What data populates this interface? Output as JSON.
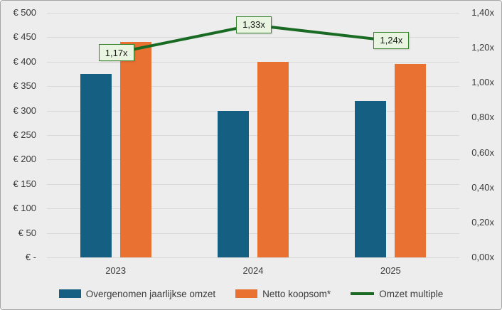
{
  "chart_data": {
    "type": "bar",
    "subtype": "combo-bar-line-dual-axis",
    "title": "",
    "categories": [
      "2023",
      "2024",
      "2025"
    ],
    "series": [
      {
        "name": "Overgenomen jaarlijkse omzet",
        "chart": "bar",
        "axis": "left",
        "color": "#156082",
        "values": [
          375,
          300,
          320
        ]
      },
      {
        "name": "Netto koopsom*",
        "chart": "bar",
        "axis": "left",
        "color": "#E97132",
        "values": [
          440,
          400,
          396
        ]
      },
      {
        "name": "Omzet multiple",
        "chart": "line",
        "axis": "right",
        "color": "#196B24",
        "values": [
          1.17,
          1.33,
          1.24
        ],
        "point_labels": [
          "1,17x",
          "1,33x",
          "1,24x"
        ],
        "point_label_fill": "#E9F5E1",
        "point_label_border": "#38862F"
      }
    ],
    "left_axis": {
      "min": 0,
      "max": 500,
      "tick_values": [
        500,
        450,
        400,
        350,
        300,
        250,
        200,
        150,
        100,
        50,
        0
      ],
      "tick_labels": [
        "€ 500",
        "€ 450",
        "€ 400",
        "€ 350",
        "€ 300",
        "€ 250",
        "€ 200",
        "€ 150",
        "€ 100",
        "€ 50",
        "€ -"
      ]
    },
    "right_axis": {
      "min": 0,
      "max": 1.4,
      "tick_values": [
        1.4,
        1.2,
        1.0,
        0.8,
        0.6,
        0.4,
        0.2,
        0.0
      ],
      "tick_labels": [
        "1,40x",
        "1,20x",
        "1,00x",
        "0,80x",
        "0,60x",
        "0,40x",
        "0,20x",
        "0,00x"
      ]
    },
    "grid": true,
    "legend_position": "bottom",
    "colors": {
      "background": "#EDEDED",
      "gridline": "#D9D9D9",
      "axis_text": "#3A3A3A",
      "frame_border": "#A6A6A6"
    }
  }
}
